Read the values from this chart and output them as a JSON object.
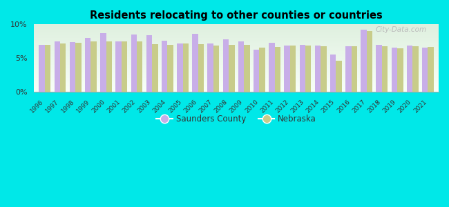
{
  "title": "Residents relocating to other counties or countries",
  "years": [
    1996,
    1997,
    1998,
    1999,
    2000,
    2001,
    2002,
    2003,
    2004,
    2005,
    2006,
    2007,
    2008,
    2009,
    2010,
    2011,
    2012,
    2013,
    2014,
    2015,
    2016,
    2017,
    2018,
    2019,
    2020,
    2021
  ],
  "saunders": [
    7.0,
    7.5,
    7.4,
    8.0,
    8.7,
    7.5,
    8.5,
    8.4,
    7.6,
    7.2,
    8.6,
    7.2,
    7.8,
    7.5,
    6.2,
    7.3,
    6.9,
    7.0,
    6.9,
    5.5,
    6.8,
    9.2,
    7.0,
    6.5,
    6.9,
    6.6
  ],
  "nebraska": [
    7.0,
    7.2,
    7.3,
    7.5,
    7.5,
    7.5,
    7.5,
    7.1,
    7.0,
    7.2,
    7.1,
    6.9,
    7.0,
    7.0,
    6.5,
    6.7,
    6.9,
    6.9,
    6.8,
    4.6,
    6.8,
    9.0,
    6.8,
    6.4,
    6.8,
    6.7
  ],
  "saunders_color": "#c8aee8",
  "nebraska_color": "#c8cc8a",
  "background_color": "#00e8e8",
  "ylim": [
    0,
    10
  ],
  "ytick_labels": [
    "0%",
    "5%",
    "10%"
  ],
  "watermark": "City-Data.com",
  "bar_width": 0.38,
  "legend_label1": "Saunders County",
  "legend_label2": "Nebraska"
}
